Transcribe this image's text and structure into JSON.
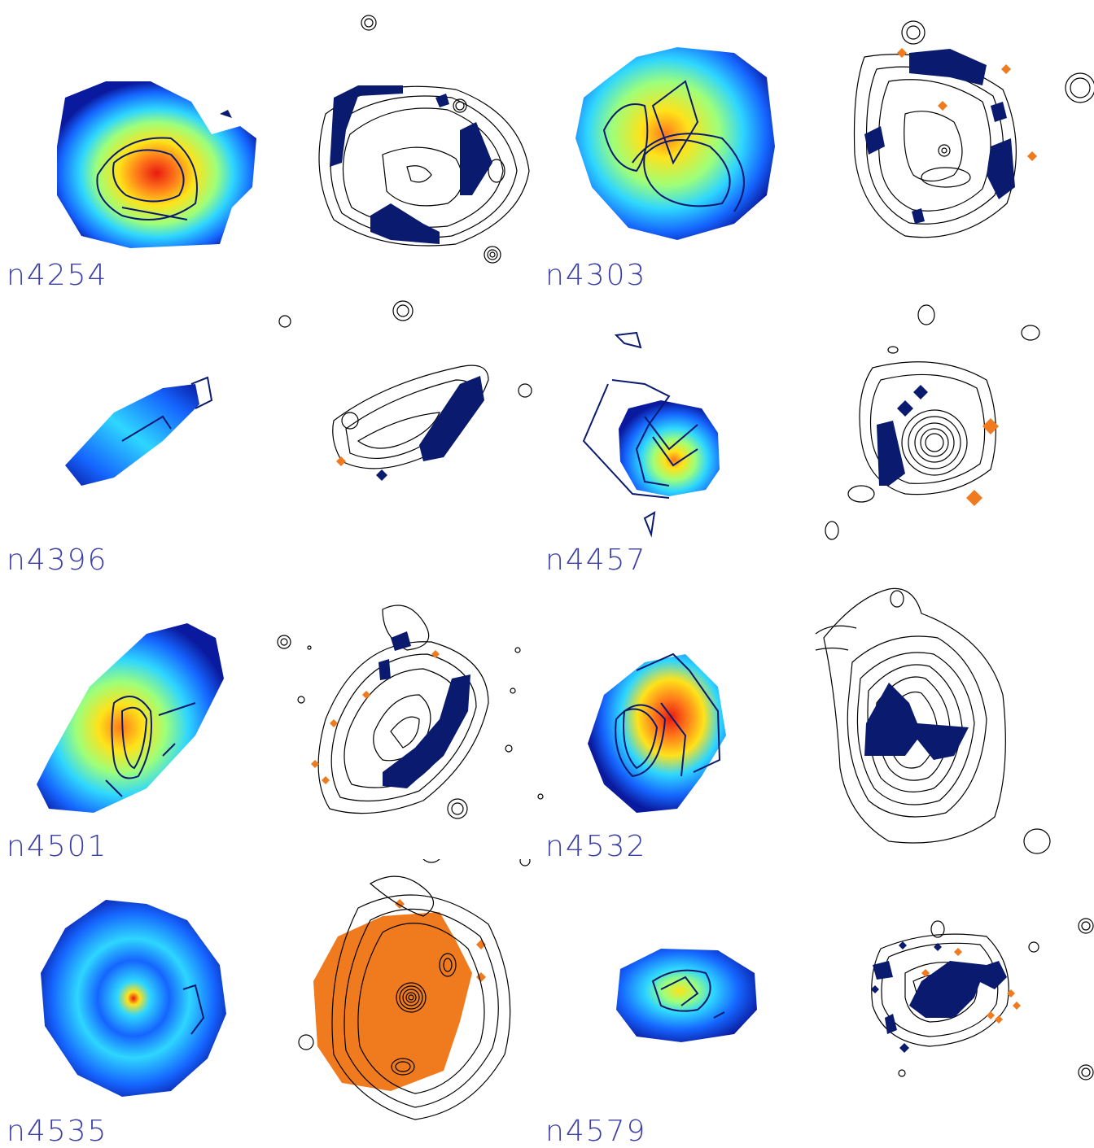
{
  "panels": [
    {
      "label": "n4254"
    },
    {
      "label": "n4303"
    },
    {
      "label": "n4396"
    },
    {
      "label": "n4457"
    },
    {
      "label": "n4501"
    },
    {
      "label": "n4532"
    },
    {
      "label": "n4535"
    },
    {
      "label": "n4579"
    }
  ],
  "colors": {
    "label_text": "#3b3fa6",
    "contour": "#000000",
    "contour_overlay": "#0a1a6e",
    "negative_fill": "#0a1a6e",
    "positive_fill": "#f07a1e",
    "colormap": [
      "#0a1a9e",
      "#1565ff",
      "#2ed6ff",
      "#9dff7a",
      "#ffe21a",
      "#ff7a1a",
      "#e81a10"
    ]
  }
}
